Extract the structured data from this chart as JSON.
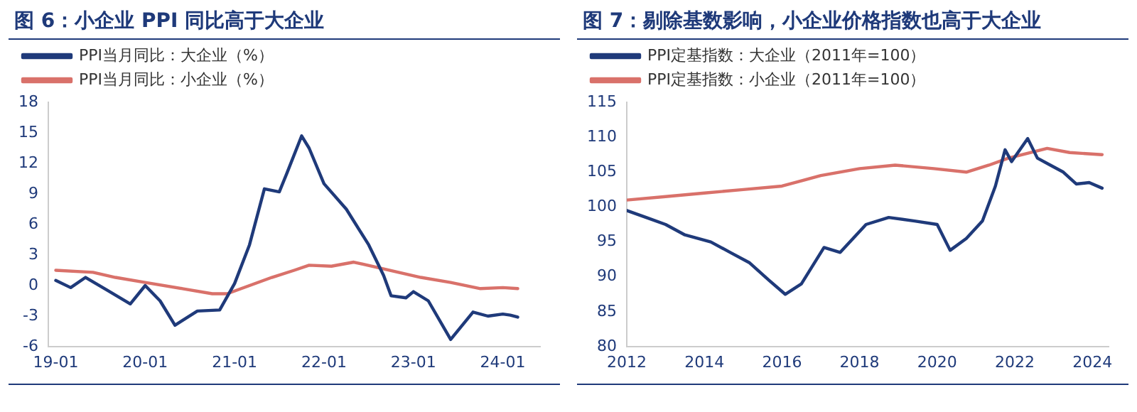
{
  "chart_data": [
    {
      "type": "line",
      "title": "图 6：小企业 PPI 同比高于大企业",
      "legend": "top left",
      "grid": false,
      "marker": "none",
      "xlim": [
        "2018-12",
        "2024-06"
      ],
      "xticks": [
        {
          "value": "2019-01",
          "label": "19-01"
        },
        {
          "value": "2020-01",
          "label": "20-01"
        },
        {
          "value": "2021-01",
          "label": "21-01"
        },
        {
          "value": "2022-01",
          "label": "22-01"
        },
        {
          "value": "2023-01",
          "label": "23-01"
        },
        {
          "value": "2024-01",
          "label": "24-01"
        }
      ],
      "ylim": [
        -6,
        18
      ],
      "yticks": [
        -6,
        -3,
        0,
        3,
        6,
        9,
        12,
        15,
        18
      ],
      "series": [
        {
          "name": "PPI当月同比：大企业（%）",
          "color": "#1f3a7a",
          "x": [
            "2019-01",
            "2019-03",
            "2019-05",
            "2019-08",
            "2019-11",
            "2020-01",
            "2020-03",
            "2020-05",
            "2020-08",
            "2020-11",
            "2021-01",
            "2021-03",
            "2021-05",
            "2021-07",
            "2021-08",
            "2021-10",
            "2021-11",
            "2022-01",
            "2022-04",
            "2022-07",
            "2022-09",
            "2022-10",
            "2022-12",
            "2023-01",
            "2023-03",
            "2023-06",
            "2023-09",
            "2023-11",
            "2024-01",
            "2024-02",
            "2024-03"
          ],
          "values": [
            0.5,
            -0.2,
            0.8,
            -0.5,
            -1.8,
            0.0,
            -1.5,
            -3.9,
            -2.5,
            -2.4,
            0.2,
            4.0,
            9.5,
            9.2,
            11,
            14.7,
            13.5,
            10.0,
            7.5,
            4.0,
            1.0,
            -1.0,
            -1.2,
            -0.6,
            -1.5,
            -5.3,
            -2.6,
            -3.0,
            -2.8,
            -2.9,
            -3.1
          ]
        },
        {
          "name": "PPI当月同比：小企业（%）",
          "color": "#d9716a",
          "x": [
            "2019-01",
            "2019-06",
            "2019-09",
            "2020-01",
            "2020-06",
            "2020-10",
            "2020-12",
            "2021-03",
            "2021-06",
            "2021-09",
            "2021-11",
            "2022-02",
            "2022-05",
            "2022-08",
            "2022-11",
            "2023-02",
            "2023-06",
            "2023-10",
            "2024-01",
            "2024-03"
          ],
          "values": [
            1.5,
            1.3,
            0.8,
            0.3,
            -0.3,
            -0.8,
            -0.8,
            0.0,
            0.8,
            1.5,
            2.0,
            1.9,
            2.3,
            1.8,
            1.3,
            0.8,
            0.3,
            -0.3,
            -0.2,
            -0.3
          ]
        }
      ]
    },
    {
      "type": "line",
      "title": "图 7：剔除基数影响，小企业价格指数也高于大企业",
      "legend": "top left",
      "grid": false,
      "marker": "none",
      "xlim": [
        "2012",
        "2024-06"
      ],
      "xticks": [
        "2012",
        "2014",
        "2016",
        "2018",
        "2020",
        "2022",
        "2024"
      ],
      "ylim": [
        80,
        115
      ],
      "yticks": [
        80,
        85,
        90,
        95,
        100,
        105,
        110,
        115
      ],
      "series": [
        {
          "name": "PPI定基指数：大企业（2011年=100）",
          "color": "#1f3a7a",
          "x": [
            "2012-01",
            "2012-07",
            "2013-01",
            "2013-07",
            "2014-03",
            "2014-09",
            "2015-03",
            "2015-09",
            "2016-02",
            "2016-07",
            "2017-02",
            "2017-07",
            "2018-03",
            "2018-10",
            "2019-06",
            "2020-01",
            "2020-05",
            "2020-10",
            "2021-03",
            "2021-07",
            "2021-10",
            "2021-12",
            "2022-05",
            "2022-08",
            "2022-12",
            "2023-04",
            "2023-08",
            "2023-12",
            "2024-04"
          ],
          "values": [
            99.5,
            98.5,
            97.5,
            96,
            95,
            93.5,
            92,
            89.5,
            87.5,
            89,
            94.2,
            93.5,
            97.5,
            98.5,
            98,
            97.5,
            93.8,
            95.5,
            98,
            103,
            108.2,
            106.5,
            109.8,
            107,
            106,
            105,
            103.3,
            103.5,
            102.7
          ]
        },
        {
          "name": "PPI定基指数：小企业（2011年=100）",
          "color": "#d9716a",
          "x": [
            "2012-01",
            "2013-01",
            "2014-01",
            "2015-01",
            "2016-01",
            "2017-01",
            "2018-01",
            "2018-12",
            "2019-12",
            "2020-10",
            "2021-05",
            "2021-11",
            "2022-11",
            "2023-06",
            "2024-04"
          ],
          "values": [
            101,
            101.5,
            102,
            102.5,
            103,
            104.5,
            105.5,
            106,
            105.5,
            105,
            106,
            107,
            108.4,
            107.8,
            107.5
          ]
        }
      ]
    }
  ]
}
